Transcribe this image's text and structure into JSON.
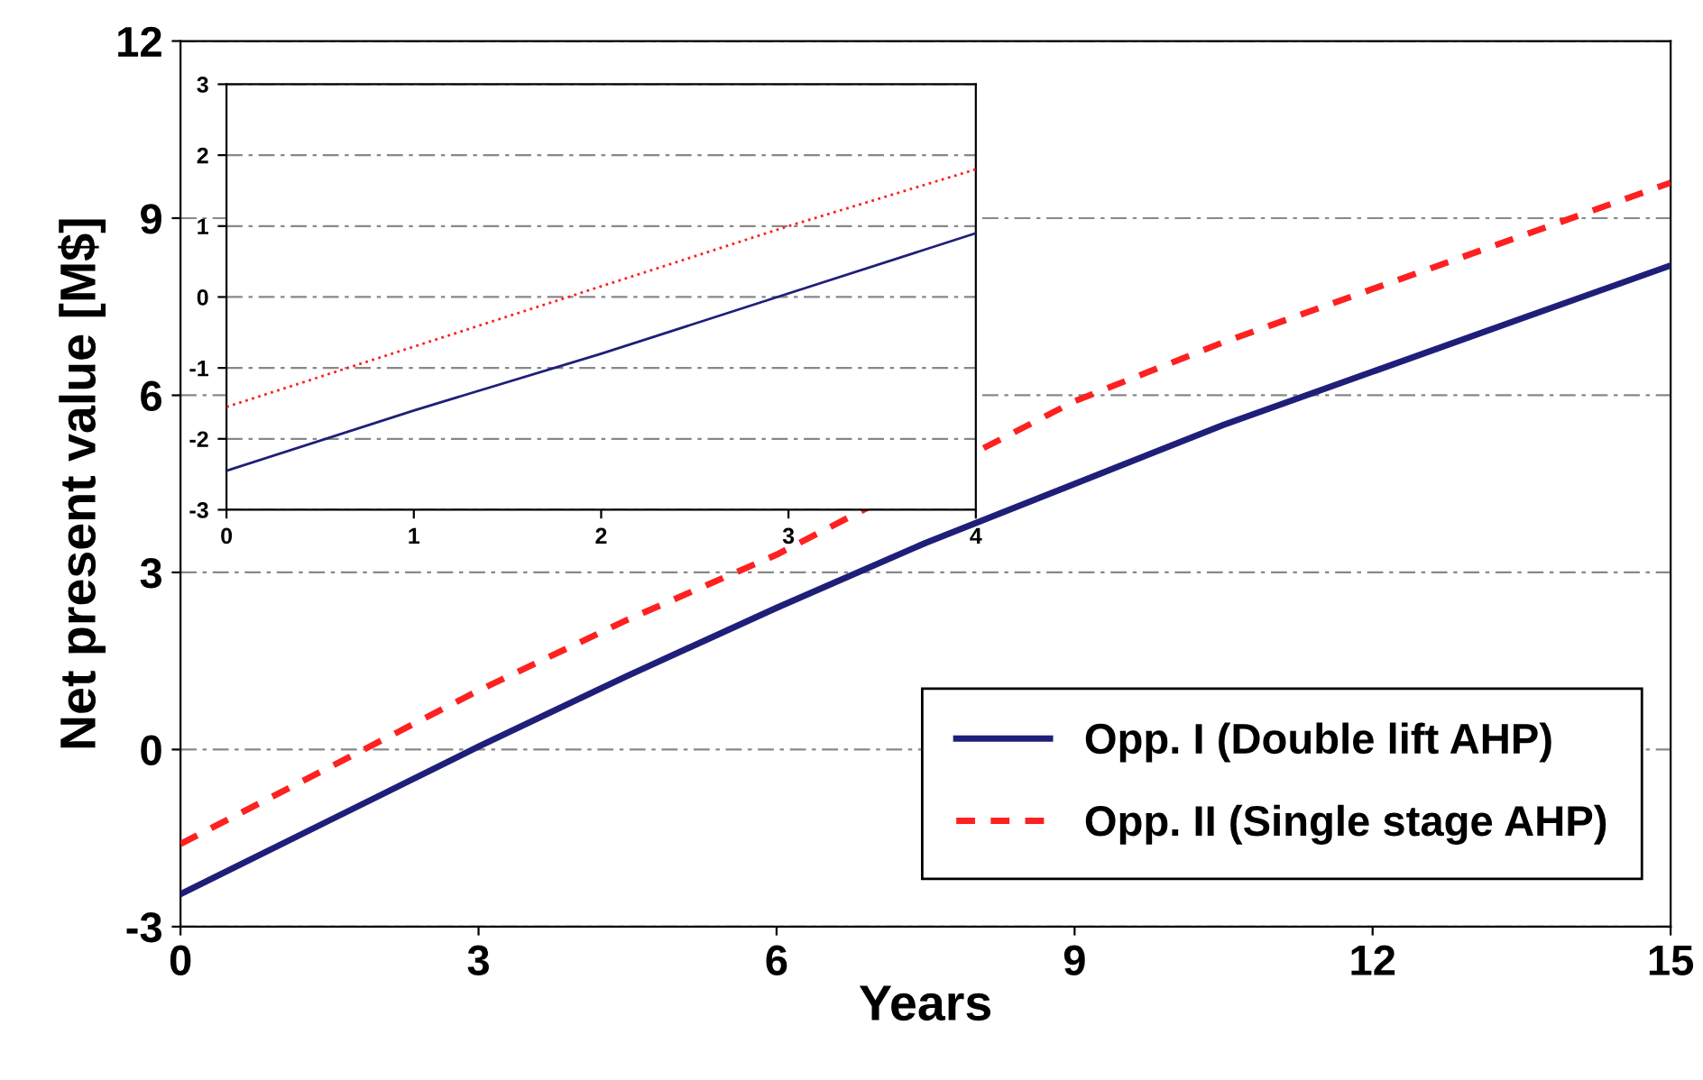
{
  "chart_data": [
    {
      "type": "line",
      "xlabel": "Years",
      "ylabel": "Net present value [M$]",
      "x": [
        0,
        1.5,
        3,
        4.5,
        6,
        7.5,
        9,
        10.5,
        12,
        13.5,
        15
      ],
      "series": [
        {
          "name": "Opp. I (Double lift AHP)",
          "color": "#1f1f7a",
          "line_style": "solid",
          "values": [
            -2.45,
            -1.2,
            0.05,
            1.25,
            2.4,
            3.5,
            4.5,
            5.5,
            6.4,
            7.3,
            8.2
          ]
        },
        {
          "name": "Opp. II (Single stage AHP)",
          "color": "#ff2020",
          "line_style": "dashed",
          "x": [
            0,
            1.5,
            3,
            4.5,
            6,
            9,
            10.5,
            12,
            13.5,
            15
          ],
          "values": [
            -1.6,
            -0.3,
            1.0,
            2.2,
            3.3,
            5.9,
            6.9,
            7.8,
            8.7,
            9.6
          ]
        }
      ],
      "xlim": [
        0,
        15
      ],
      "xticks": [
        0,
        3,
        6,
        9,
        12,
        15
      ],
      "ylim": [
        -3,
        12
      ],
      "yticks": [
        -3,
        0,
        3,
        6,
        9,
        12
      ],
      "grid": "y",
      "legend": "bottom right"
    },
    {
      "type": "line",
      "x": [
        0,
        1,
        2,
        3,
        4
      ],
      "series": [
        {
          "color": "#1f1f7a",
          "line_style": "solid",
          "values": [
            -2.45,
            -1.6,
            -0.8,
            0.05,
            0.9
          ]
        },
        {
          "color": "#ff2020",
          "line_style": "dotted",
          "values": [
            -1.55,
            -0.7,
            0.15,
            1.0,
            1.8
          ]
        }
      ],
      "xlim": [
        0,
        4
      ],
      "xticks": [
        0,
        1,
        2,
        3,
        4
      ],
      "ylim": [
        -3,
        3
      ],
      "yticks": [
        -3,
        -2,
        -1,
        0,
        1,
        2,
        3
      ],
      "grid": "y"
    }
  ]
}
